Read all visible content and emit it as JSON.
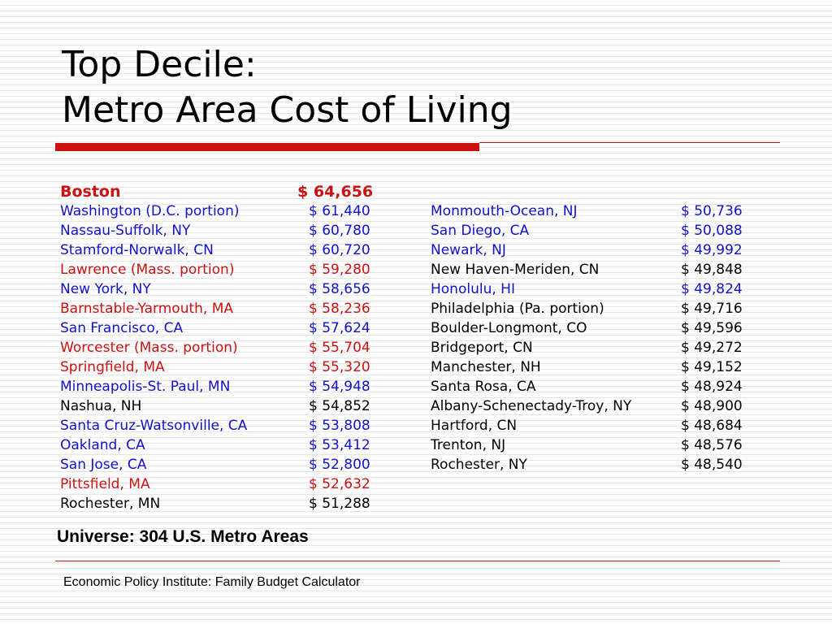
{
  "title": {
    "line1": "Top Decile:",
    "line2": "Metro Area Cost of Living"
  },
  "colors": {
    "red": "#cc1111",
    "blue": "#1111cc",
    "black": "#000000"
  },
  "left_list": [
    {
      "city": "Boston",
      "value": "$  64,656",
      "color": "red",
      "lead": true
    },
    {
      "city": "Washington (D.C. portion)",
      "value": "$  61,440",
      "color": "blue"
    },
    {
      "city": "Nassau-Suffolk, NY",
      "value": "$  60,780",
      "color": "blue"
    },
    {
      "city": "Stamford-Norwalk, CN",
      "value": "$  60,720",
      "color": "blue"
    },
    {
      "city": "Lawrence (Mass. portion)",
      "value": "$  59,280",
      "color": "red"
    },
    {
      "city": "New York, NY",
      "value": "$  58,656",
      "color": "blue"
    },
    {
      "city": "Barnstable-Yarmouth, MA",
      "value": "$  58,236",
      "color": "red"
    },
    {
      "city": "San Francisco, CA",
      "value": "$  57,624",
      "color": "blue"
    },
    {
      "city": "Worcester (Mass. portion)",
      "value": "$  55,704",
      "color": "red"
    },
    {
      "city": "Springfield, MA",
      "value": "$  55,320",
      "color": "red"
    },
    {
      "city": "Minneapolis-St. Paul, MN",
      "value": "$  54,948",
      "color": "blue"
    },
    {
      "city": "Nashua, NH",
      "value": "$  54,852",
      "color": "black"
    },
    {
      "city": "Santa Cruz-Watsonville, CA",
      "value": "$  53,808",
      "color": "blue"
    },
    {
      "city": "Oakland, CA",
      "value": "$  53,412",
      "color": "blue"
    },
    {
      "city": "San Jose, CA",
      "value": "$  52,800",
      "color": "blue"
    },
    {
      "city": "Pittsfield, MA",
      "value": "$  52,632",
      "color": "red"
    },
    {
      "city": "Rochester, MN",
      "value": "$  51,288",
      "color": "black"
    }
  ],
  "right_list": [
    {
      "city": "Monmouth-Ocean, NJ",
      "value": "$  50,736",
      "color": "blue"
    },
    {
      "city": "San Diego, CA",
      "value": "$  50,088",
      "color": "blue"
    },
    {
      "city": "Newark, NJ",
      "value": "$  49,992",
      "color": "blue"
    },
    {
      "city": "New Haven-Meriden, CN",
      "value": "$  49,848",
      "color": "black"
    },
    {
      "city": "Honolulu, HI",
      "value": "$  49,824",
      "color": "blue"
    },
    {
      "city": "Philadelphia (Pa. portion)",
      "value": "$  49,716",
      "color": "black"
    },
    {
      "city": "Boulder-Longmont, CO",
      "value": "$  49,596",
      "color": "black"
    },
    {
      "city": "Bridgeport, CN",
      "value": "$  49,272",
      "color": "black"
    },
    {
      "city": "Manchester, NH",
      "value": "$  49,152",
      "color": "black"
    },
    {
      "city": "Santa Rosa, CA",
      "value": "$  48,924",
      "color": "black"
    },
    {
      "city": "Albany-Schenectady-Troy, NY",
      "value": "$  48,900",
      "color": "black"
    },
    {
      "city": "Hartford, CN",
      "value": "$  48,684",
      "color": "black"
    },
    {
      "city": "Trenton, NJ",
      "value": "$  48,576",
      "color": "black"
    },
    {
      "city": "Rochester, NY",
      "value": "$  48,540",
      "color": "black"
    }
  ],
  "universe_note": "Universe: 304 U.S. Metro Areas",
  "source": "Economic Policy Institute: Family Budget Calculator"
}
